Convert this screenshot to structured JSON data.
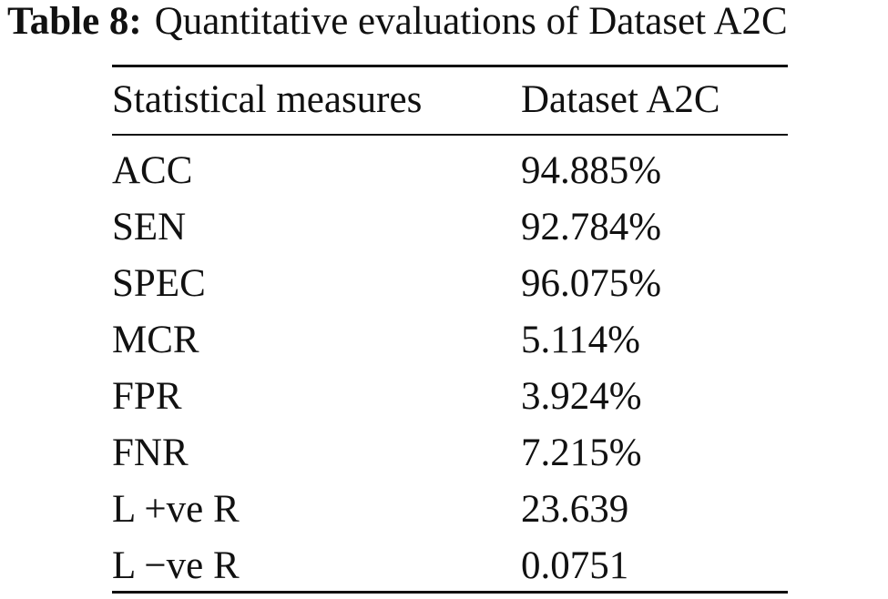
{
  "caption": {
    "label": "Table 8:",
    "title": "Quantitative evaluations of Dataset A2C"
  },
  "table": {
    "headers": [
      "Statistical measures",
      "Dataset A2C"
    ],
    "rows": [
      {
        "measure": "ACC",
        "value": "94.885%"
      },
      {
        "measure": "SEN",
        "value": "92.784%"
      },
      {
        "measure": "SPEC",
        "value": "96.075%"
      },
      {
        "measure": "MCR",
        "value": "5.114%"
      },
      {
        "measure": "FPR",
        "value": "3.924%"
      },
      {
        "measure": "FNR",
        "value": "7.215%"
      },
      {
        "measure": "L +ve R",
        "value": "23.639"
      },
      {
        "measure": "L −ve R",
        "value": "0.0751"
      }
    ]
  }
}
